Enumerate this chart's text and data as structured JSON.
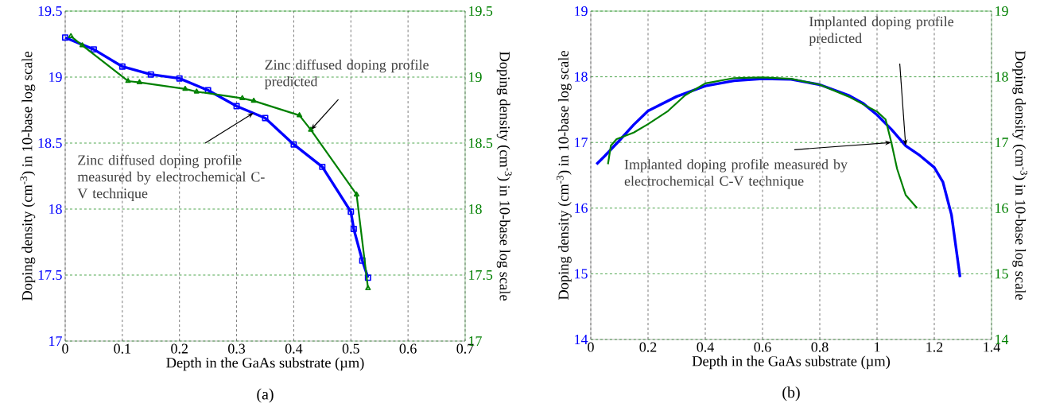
{
  "chart_data": [
    {
      "type": "line",
      "title": "(a)",
      "xlabel": "Depth in the GaAs substrate (µm)",
      "ylabel": "Doping density (cm$^{-3}$) in 10-base log scale",
      "y2label": "Doping density (cm$^{-3}$) in 10-base log scale",
      "xlim": [
        0,
        0.7
      ],
      "xticks": [
        0,
        0.1,
        0.2,
        0.3,
        0.4,
        0.5,
        0.6,
        0.7
      ],
      "ylim": [
        17,
        19.5
      ],
      "yticks": [
        17,
        17.5,
        18,
        18.5,
        19,
        19.5
      ],
      "y2lim": [
        17,
        19.5
      ],
      "y2ticks": [
        17,
        17.5,
        18,
        18.5,
        19,
        19.5
      ],
      "grid": true,
      "series": [
        {
          "color": "#0000ff",
          "marker": "square",
          "x": [
            0,
            0.05,
            0.1,
            0.15,
            0.2,
            0.25,
            0.3,
            0.35,
            0.4,
            0.45,
            0.5,
            0.505,
            0.52,
            0.53
          ],
          "values": [
            19.3,
            19.21,
            19.08,
            19.02,
            18.99,
            18.9,
            18.78,
            18.69,
            18.49,
            18.32,
            17.98,
            17.85,
            17.61,
            17.48
          ]
        },
        {
          "color": "#008000",
          "marker": "triangle",
          "axis": "y2",
          "x": [
            0.01,
            0.03,
            0.11,
            0.13,
            0.21,
            0.23,
            0.31,
            0.33,
            0.41,
            0.43,
            0.51,
            0.53
          ],
          "values": [
            19.31,
            19.24,
            18.97,
            18.96,
            18.91,
            18.89,
            18.84,
            18.82,
            18.71,
            18.6,
            18.11,
            17.4
          ]
        }
      ],
      "annotations": [
        {
          "text": "Zinc diffused doping profile measured by electrochemical C-V technique",
          "x": 0.33,
          "y": 18.73
        },
        {
          "text": "Zinc diffused doping profile predicted",
          "x": 0.43,
          "y": 18.6
        }
      ]
    },
    {
      "type": "line",
      "title": "(b)",
      "xlabel": "Depth in the GaAs substrate (µm)",
      "ylabel": "Doping density (cm$^{-3}$) in 10-base log scale",
      "y2label": "Doping density (cm$^{-3}$) in 10-base log scale",
      "xlim": [
        0,
        1.4
      ],
      "xticks": [
        0,
        0.2,
        0.4,
        0.6,
        0.8,
        1,
        1.2,
        1.4
      ],
      "ylim": [
        14,
        19
      ],
      "yticks": [
        14,
        15,
        16,
        17,
        18,
        19
      ],
      "y2lim": [
        14,
        19
      ],
      "y2ticks": [
        14,
        15,
        16,
        17,
        18,
        19
      ],
      "grid": true,
      "series": [
        {
          "color": "#0000ff",
          "x": [
            0.02,
            0.05,
            0.1,
            0.15,
            0.2,
            0.3,
            0.4,
            0.5,
            0.6,
            0.7,
            0.8,
            0.9,
            0.95,
            1.0,
            1.05,
            1.1,
            1.15,
            1.2,
            1.23,
            1.26,
            1.29
          ],
          "values": [
            16.67,
            16.8,
            17.03,
            17.27,
            17.48,
            17.7,
            17.86,
            17.94,
            17.97,
            17.96,
            17.88,
            17.72,
            17.6,
            17.42,
            17.2,
            16.95,
            16.8,
            16.62,
            16.4,
            15.9,
            14.95
          ]
        },
        {
          "color": "#008000",
          "axis": "y2",
          "x": [
            0.06,
            0.07,
            0.09,
            0.15,
            0.2,
            0.27,
            0.33,
            0.4,
            0.5,
            0.6,
            0.7,
            0.8,
            0.9,
            1.0,
            1.03,
            1.05,
            1.07,
            1.1,
            1.14
          ],
          "values": [
            16.67,
            16.95,
            17.05,
            17.15,
            17.28,
            17.48,
            17.72,
            17.9,
            17.98,
            17.99,
            17.97,
            17.88,
            17.7,
            17.47,
            17.35,
            17.0,
            16.6,
            16.2,
            16.0
          ]
        }
      ],
      "annotations": [
        {
          "text": "Implanted doping profile measured by electrochemical C-V technique",
          "x": 1.05,
          "y": 17.0
        },
        {
          "text": "Implanted doping profile predicted",
          "x": 1.1,
          "y": 16.95
        }
      ]
    }
  ]
}
